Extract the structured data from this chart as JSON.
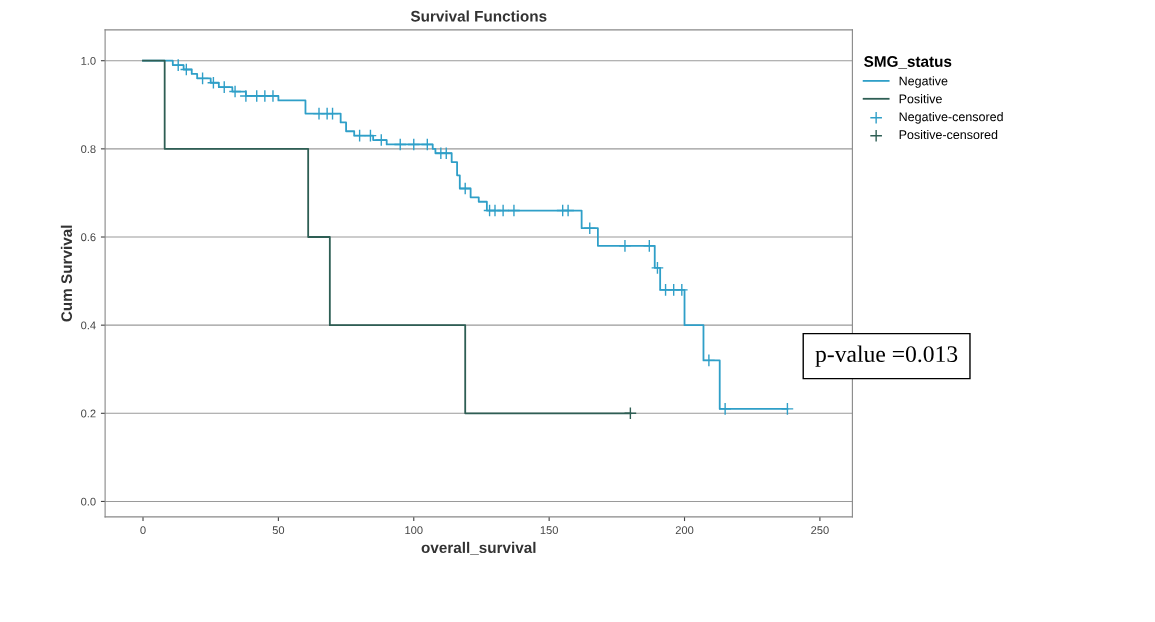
{
  "chart_data": {
    "type": "step",
    "title": "Survival Functions",
    "xlabel": "overall_survival",
    "ylabel": "Cum Survival",
    "legend_title": "SMG_status",
    "xlim": [
      -14,
      262
    ],
    "ylim": [
      -0.035,
      1.07
    ],
    "xticks": [
      0,
      50,
      100,
      150,
      200,
      250
    ],
    "yticks": [
      {
        "value": 0,
        "label": "0.0"
      },
      {
        "value": 0.2,
        "label": "0.2"
      },
      {
        "value": 0.4,
        "label": "0.4"
      },
      {
        "value": 0.6,
        "label": "0.6"
      },
      {
        "value": 0.8,
        "label": "0.8"
      },
      {
        "value": 1,
        "label": "1.0"
      }
    ],
    "grid": "y",
    "legend": "top right",
    "marker": "none",
    "annotations": [
      "p-value =0.013"
    ],
    "series": [
      {
        "name": "Negative",
        "color": "#2f9fc8",
        "x": [
          0,
          11,
          12,
          15,
          18,
          20,
          25,
          28,
          33,
          38,
          50,
          60,
          73,
          75,
          78,
          85,
          90,
          107,
          108,
          114,
          116,
          117,
          121,
          124,
          127,
          162,
          168,
          189,
          191,
          200,
          207,
          213,
          238
        ],
        "values": [
          1.0,
          0.99,
          0.99,
          0.98,
          0.97,
          0.96,
          0.95,
          0.94,
          0.93,
          0.92,
          0.91,
          0.88,
          0.86,
          0.84,
          0.83,
          0.82,
          0.81,
          0.8,
          0.79,
          0.77,
          0.74,
          0.71,
          0.69,
          0.68,
          0.66,
          0.62,
          0.58,
          0.53,
          0.48,
          0.4,
          0.32,
          0.21,
          0.21
        ]
      },
      {
        "name": "Positive",
        "color": "#2e5e54",
        "x": [
          0,
          8,
          61,
          69,
          119,
          180
        ],
        "values": [
          1.0,
          0.8,
          0.6,
          0.4,
          0.2,
          0.2
        ]
      },
      {
        "name": "Negative-censored",
        "type": "scatter",
        "marker": "cross",
        "color": "#2f9fc8",
        "x": [
          13,
          16,
          22,
          26,
          30,
          34,
          38,
          42,
          45,
          48,
          65,
          68,
          70,
          80,
          84,
          88,
          95,
          100,
          105,
          110,
          112,
          119,
          128,
          130,
          133,
          137,
          155,
          157,
          165,
          178,
          187,
          190,
          193,
          196,
          199,
          209,
          215,
          238
        ],
        "values": [
          0.99,
          0.98,
          0.96,
          0.95,
          0.94,
          0.93,
          0.92,
          0.92,
          0.92,
          0.92,
          0.88,
          0.88,
          0.88,
          0.83,
          0.83,
          0.82,
          0.81,
          0.81,
          0.81,
          0.79,
          0.79,
          0.71,
          0.66,
          0.66,
          0.66,
          0.66,
          0.66,
          0.66,
          0.62,
          0.58,
          0.58,
          0.53,
          0.48,
          0.48,
          0.48,
          0.32,
          0.21,
          0.21
        ]
      },
      {
        "name": "Positive-censored",
        "type": "scatter",
        "marker": "cross",
        "color": "#2e5e54",
        "x": [
          180
        ],
        "values": [
          0.2
        ]
      }
    ]
  }
}
